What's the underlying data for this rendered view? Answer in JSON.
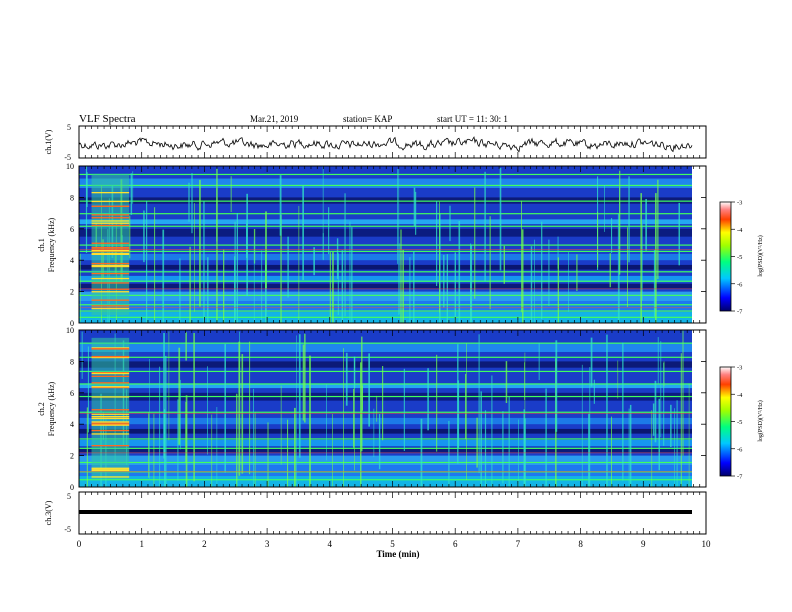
{
  "header": {
    "title": "VLF Spectra",
    "date": "Mar.21, 2019",
    "station": "station= KAP",
    "start": "start  UT =   11: 30: 1"
  },
  "chart_data": [
    {
      "type": "line",
      "ylabel": "ch.1(V)",
      "ylim": [
        -5,
        5
      ],
      "yticks": [
        "5",
        "-5"
      ],
      "xlim": [
        0,
        10
      ],
      "note": "waveform"
    },
    {
      "type": "heatmap",
      "ylabel_1": "ch.1",
      "ylabel_2": "Frequency  (kHz)",
      "ylim": [
        0,
        10
      ],
      "yticks": [
        "0",
        "2",
        "4",
        "6",
        "8",
        "10"
      ],
      "xlim": [
        0,
        10
      ],
      "colorbar": {
        "label": "log(PSD)(V²/Hz)",
        "ticks": [
          "-3",
          "-4",
          "-5",
          "-6",
          "-7"
        ],
        "range": [
          -7,
          -3
        ]
      }
    },
    {
      "type": "heatmap",
      "ylabel_1": "ch.2",
      "ylabel_2": "Frequency  (kHz)",
      "ylim": [
        0,
        10
      ],
      "yticks": [
        "0",
        "2",
        "4",
        "6",
        "8",
        "10"
      ],
      "xlim": [
        0,
        10
      ],
      "colorbar": {
        "label": "log(PSD)(V²/Hz)",
        "ticks": [
          "-3",
          "-4",
          "-5",
          "-6",
          "-7"
        ],
        "range": [
          -7,
          -3
        ]
      }
    },
    {
      "type": "line",
      "ylabel": "ch.3(V)",
      "ylim": [
        -5,
        5
      ],
      "yticks": [
        "5",
        "-5"
      ],
      "xlim": [
        0,
        10
      ],
      "note": "flat"
    }
  ],
  "xaxis": {
    "label": "Time  (min)",
    "ticks": [
      "0",
      "1",
      "2",
      "3",
      "4",
      "5",
      "6",
      "7",
      "8",
      "9",
      "10"
    ]
  },
  "colors": {
    "axis": "#000000",
    "spec_background": "#1a3cc8"
  }
}
